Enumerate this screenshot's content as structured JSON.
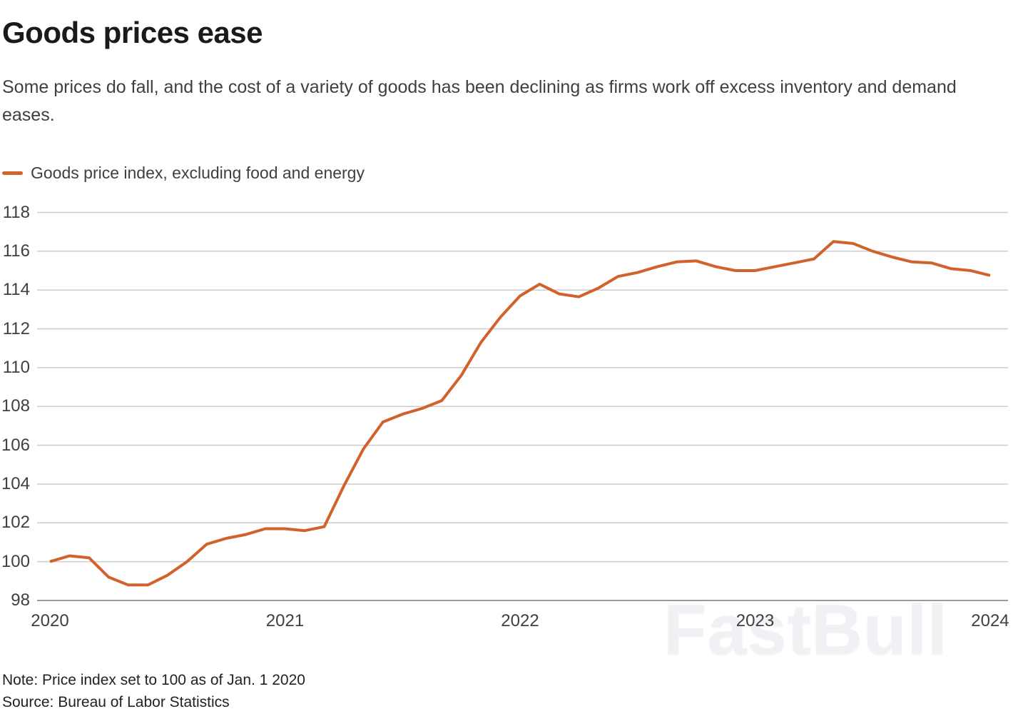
{
  "header": {
    "title": "Goods prices ease",
    "subtitle": "Some prices do fall, and the cost of a variety of goods has been declining as firms work off excess inventory and demand eases."
  },
  "legend": {
    "label": "Goods price index, excluding food and energy"
  },
  "footer": {
    "note": "Note: Price index set to 100 as of Jan. 1 2020",
    "source": "Source: Bureau of Labor Statistics"
  },
  "watermark": "FastBull",
  "colors": {
    "line": "#d2622b",
    "grid": "#cdcdcd",
    "axis": "#9a9a9a",
    "tick_text": "#404040"
  },
  "chart_data": {
    "type": "line",
    "title": "Goods prices ease",
    "xlabel": "",
    "ylabel": "",
    "x_start": "2020-01",
    "x_frequency": "monthly",
    "x_tick_labels": [
      "2020",
      "2021",
      "2022",
      "2023",
      "2024"
    ],
    "ylim": [
      98,
      118
    ],
    "y_ticks": [
      98,
      100,
      102,
      104,
      106,
      108,
      110,
      112,
      114,
      116,
      118
    ],
    "grid": "horizontal",
    "legend_position": "top-left",
    "series": [
      {
        "name": "Goods price index, excluding food and energy",
        "color": "#d2622b",
        "values": [
          100.0,
          100.3,
          100.2,
          99.2,
          98.8,
          98.8,
          99.3,
          100.0,
          100.9,
          101.2,
          101.4,
          101.7,
          101.7,
          101.6,
          101.8,
          103.9,
          105.8,
          107.2,
          107.6,
          107.9,
          108.3,
          109.6,
          111.3,
          112.6,
          113.7,
          114.3,
          113.8,
          113.65,
          114.1,
          114.7,
          114.9,
          115.2,
          115.45,
          115.5,
          115.2,
          115.0,
          115.0,
          115.2,
          115.4,
          115.6,
          116.5,
          116.4,
          116.0,
          115.7,
          115.45,
          115.4,
          115.1,
          115.0,
          114.75
        ]
      }
    ],
    "annotation": "Index set to 100 as of Jan. 1 2020"
  }
}
